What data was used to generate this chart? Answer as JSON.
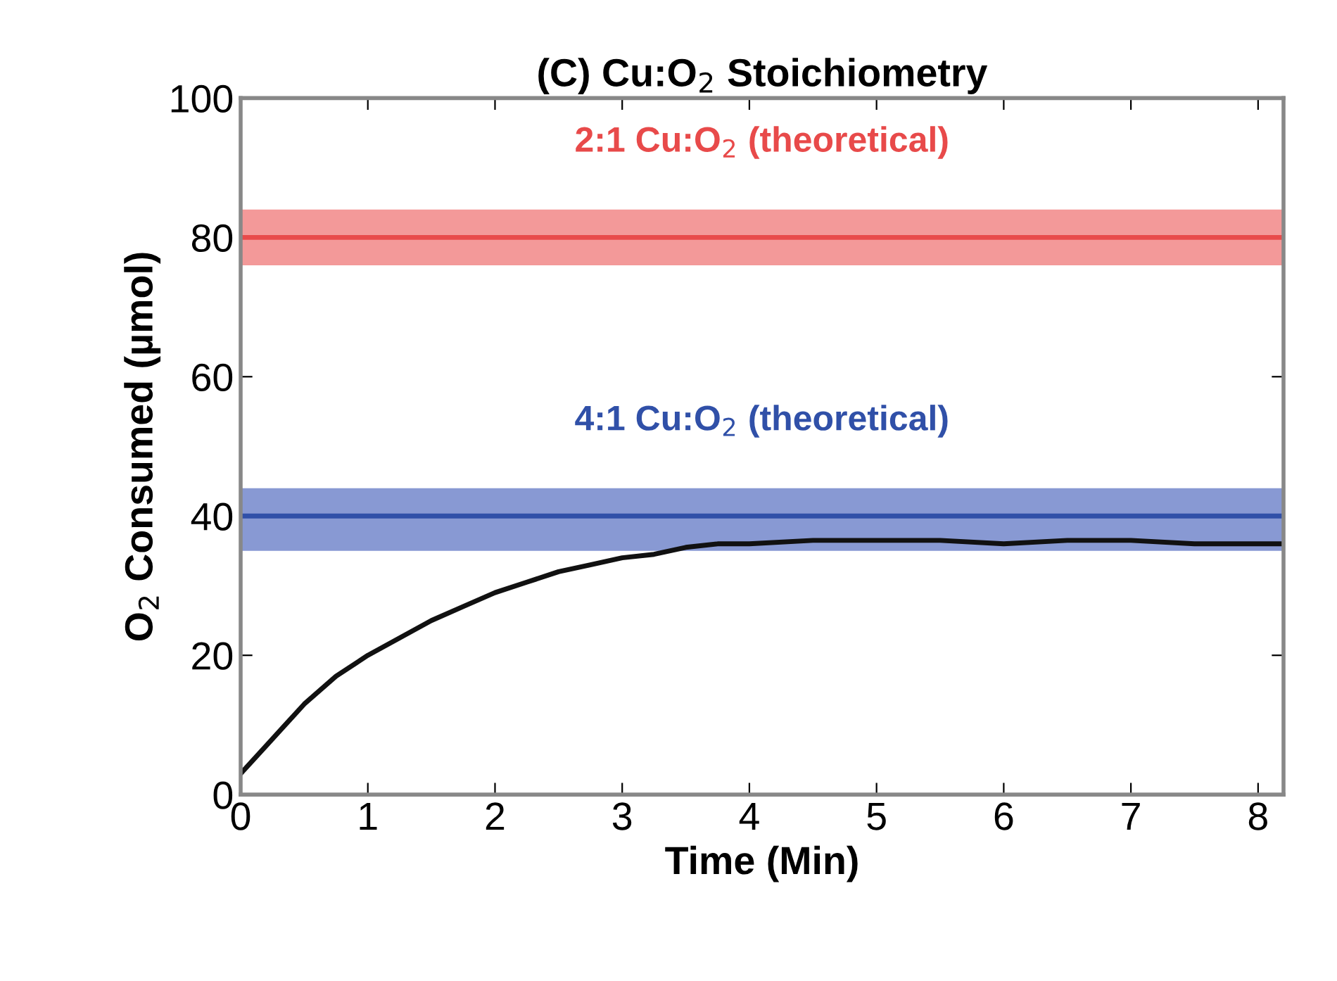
{
  "chart_data": {
    "type": "line",
    "title": "(C) Cu:O$_{2}$ Stoichiometry",
    "xlabel": "Time (Min)",
    "ylabel": "O$_{2}$ Consumed (µmol)",
    "x": [
      0,
      0.1,
      0.2,
      0.35,
      0.5,
      0.75,
      1,
      1.25,
      1.5,
      1.75,
      2,
      2.25,
      2.5,
      2.75,
      3,
      3.25,
      3.5,
      3.75,
      4,
      4.5,
      5,
      5.5,
      6,
      6.5,
      7,
      7.5,
      8,
      8.2
    ],
    "series": [
      {
        "color": "#111111",
        "values": [
          3,
          5,
          7,
          10,
          13,
          17,
          20,
          22.5,
          25,
          27,
          29,
          30.5,
          32,
          33,
          34,
          34.5,
          35.5,
          36,
          36,
          36.5,
          36.5,
          36.5,
          36,
          36.5,
          36.5,
          36,
          36,
          36
        ]
      }
    ],
    "xlim": [
      0,
      8.2
    ],
    "ylim": [
      0,
      100
    ],
    "xticks": [
      0,
      1,
      2,
      3,
      4,
      5,
      6,
      7,
      8
    ],
    "yticks": [
      0,
      20,
      40,
      60,
      80,
      100
    ],
    "ref_lines": [
      {
        "axis": "y",
        "value": 80,
        "color": "#e84a4a"
      },
      {
        "axis": "y",
        "value": 40,
        "color": "#3050a8"
      }
    ],
    "annotations": [
      {
        "text": "2:1 Cu:O$_{2}$ (theoretical)",
        "x": 4.1,
        "y": 80
      },
      {
        "text": "4:1 Cu:O$_{2}$ (theoretical)",
        "x": 4.1,
        "y": 40
      }
    ],
    "bands": [
      {
        "axis": "y",
        "from": 76,
        "to": 84,
        "color": "#f08080"
      },
      {
        "axis": "y",
        "from": 35,
        "to": 44,
        "color": "#6a80c8"
      }
    ],
    "grid": false,
    "legend": false,
    "marker": "none",
    "line_style": "solid"
  }
}
